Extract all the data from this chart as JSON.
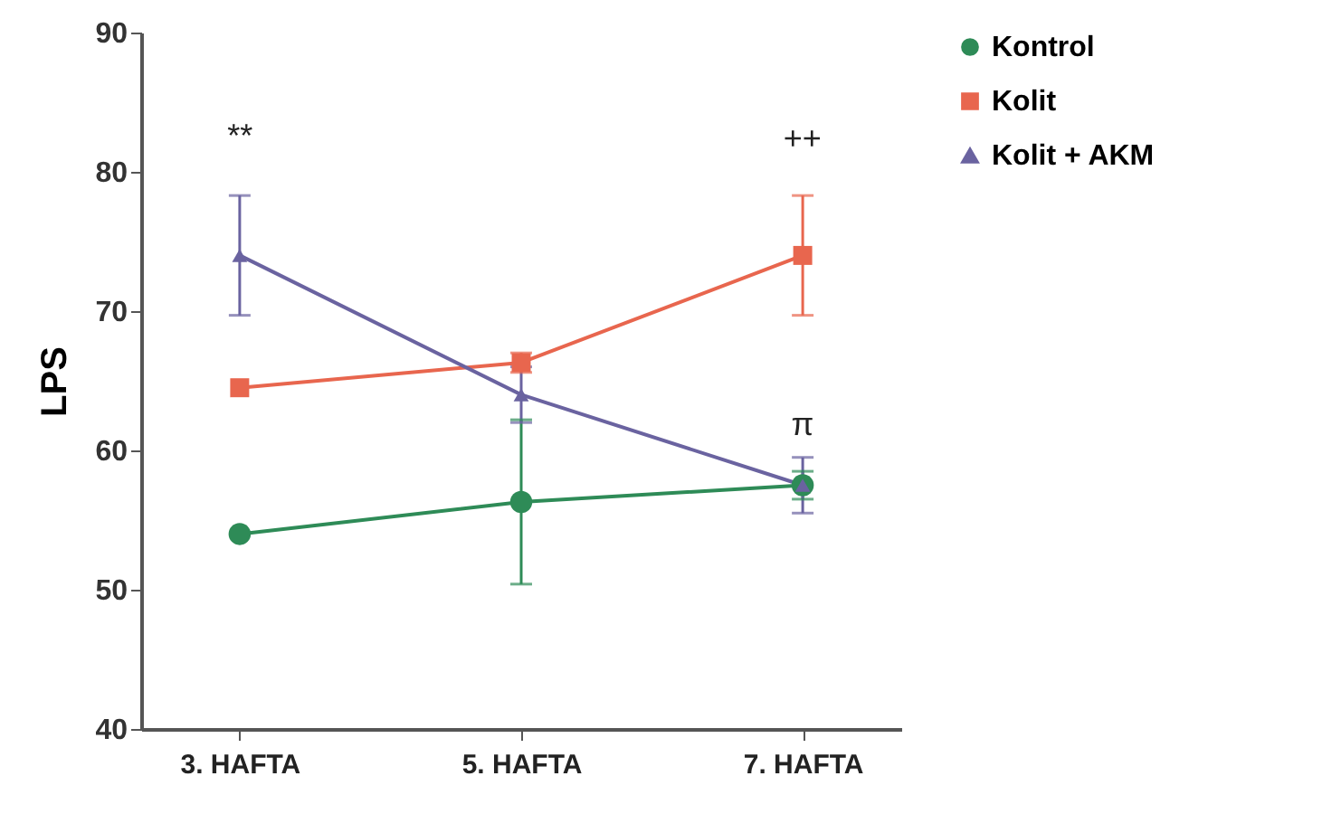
{
  "chart_data": {
    "type": "line",
    "ylabel": "LPS",
    "categories": [
      "3. HAFTA",
      "5. HAFTA",
      "7. HAFTA"
    ],
    "series": [
      {
        "name": "Kontrol",
        "color": "#2e8b57",
        "marker": "circle",
        "values": [
          54,
          56.3,
          57.5
        ],
        "errors": [
          null,
          5.9,
          1
        ]
      },
      {
        "name": "Kolit",
        "color": "#e8664e",
        "marker": "square",
        "values": [
          64.5,
          66.3,
          74
        ],
        "errors": [
          null,
          0.7,
          4.3
        ]
      },
      {
        "name": "Kolit + AKM",
        "color": "#6a63a0",
        "marker": "triangle",
        "values": [
          74,
          64,
          57.5
        ],
        "errors": [
          4.3,
          2,
          2
        ]
      }
    ],
    "ylim": [
      40,
      90
    ],
    "yticks": [
      40,
      50,
      60,
      70,
      80,
      90
    ],
    "grid": false,
    "legend": "top right",
    "annotations": [
      "**",
      "++",
      "π"
    ]
  }
}
